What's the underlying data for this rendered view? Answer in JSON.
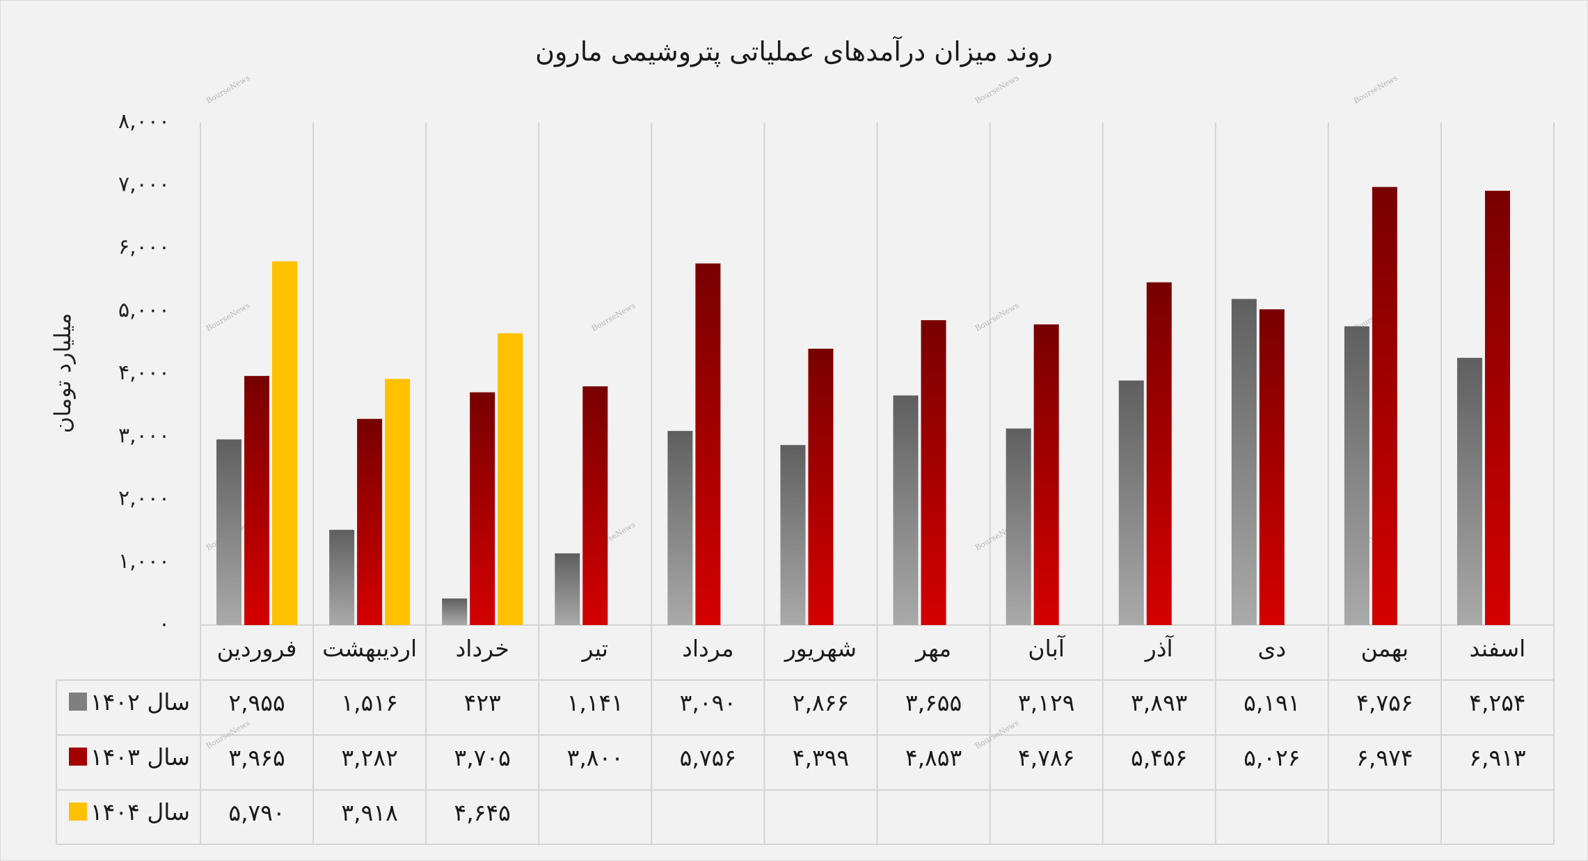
{
  "chart_data": {
    "type": "bar",
    "title": "روند میزان درآمدهای عملیاتی پتروشیمی مارون",
    "ylabel": "میلیارد تومان",
    "xlabel": "",
    "ylim": [
      0,
      8000
    ],
    "yticks": [
      0,
      1000,
      2000,
      3000,
      4000,
      5000,
      6000,
      7000,
      8000
    ],
    "ytick_labels": [
      "۰",
      "۱,۰۰۰",
      "۲,۰۰۰",
      "۳,۰۰۰",
      "۴,۰۰۰",
      "۵,۰۰۰",
      "۶,۰۰۰",
      "۷,۰۰۰",
      "۸,۰۰۰"
    ],
    "categories": [
      "فروردین",
      "اردیبهشت",
      "خرداد",
      "تیر",
      "مرداد",
      "شهریور",
      "مهر",
      "آبان",
      "آذر",
      "دی",
      "بهمن",
      "اسفند"
    ],
    "series": [
      {
        "name": "سال ۱۴۰۲",
        "color": "#7f7f7f",
        "values": [
          2955,
          1516,
          423,
          1141,
          3090,
          2866,
          3655,
          3129,
          3893,
          5191,
          4756,
          4254
        ],
        "labels": [
          "۲,۹۵۵",
          "۱,۵۱۶",
          "۴۲۳",
          "۱,۱۴۱",
          "۳,۰۹۰",
          "۲,۸۶۶",
          "۳,۶۵۵",
          "۳,۱۲۹",
          "۳,۸۹۳",
          "۵,۱۹۱",
          "۴,۷۵۶",
          "۴,۲۵۴"
        ]
      },
      {
        "name": "سال ۱۴۰۳",
        "color": "#a50000",
        "values": [
          3965,
          3282,
          3705,
          3800,
          5756,
          4399,
          4853,
          4786,
          5456,
          5026,
          6974,
          6913
        ],
        "labels": [
          "۳,۹۶۵",
          "۳,۲۸۲",
          "۳,۷۰۵",
          "۳,۸۰۰",
          "۵,۷۵۶",
          "۴,۳۹۹",
          "۴,۸۵۳",
          "۴,۷۸۶",
          "۵,۴۵۶",
          "۵,۰۲۶",
          "۶,۹۷۴",
          "۶,۹۱۳"
        ]
      },
      {
        "name": "سال ۱۴۰۴",
        "color": "#ffc000",
        "values": [
          5790,
          3918,
          4645,
          null,
          null,
          null,
          null,
          null,
          null,
          null,
          null,
          null
        ],
        "labels": [
          "۵,۷۹۰",
          "۳,۹۱۸",
          "۴,۶۴۵",
          "",
          "",
          "",
          "",
          "",
          "",
          "",
          "",
          ""
        ]
      }
    ],
    "legend": "data-table-left",
    "grid": "vertical-category-dividers",
    "watermark": "BourseNews"
  }
}
